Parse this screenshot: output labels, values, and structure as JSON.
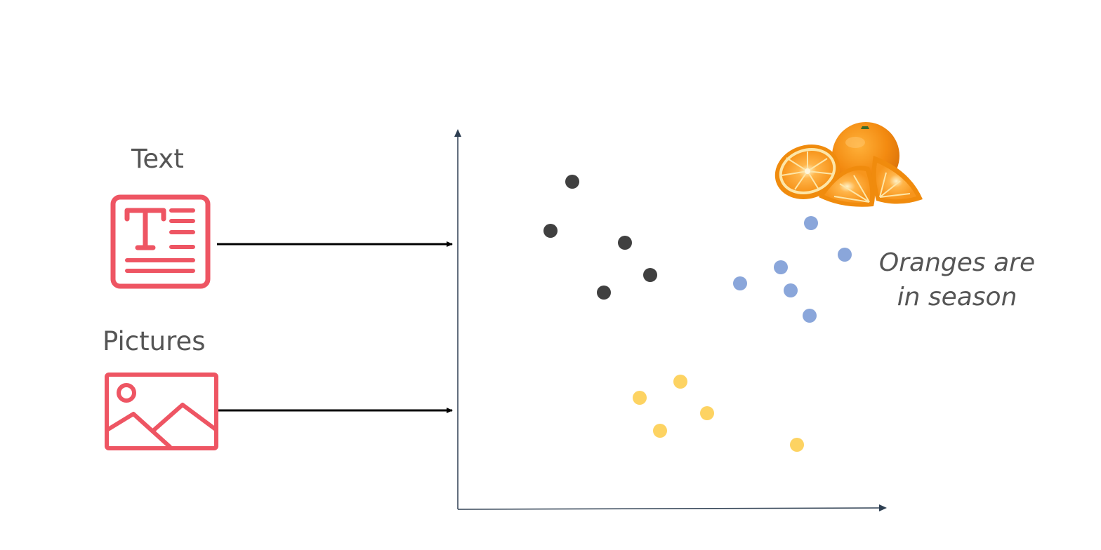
{
  "inputs": {
    "text_label": "Text",
    "pictures_label": "Pictures"
  },
  "caption": {
    "line1": "Oranges are",
    "line2": "in season"
  },
  "icons": {
    "text": "text-document-icon",
    "pictures": "image-landscape-icon",
    "oranges": "oranges-illustration"
  },
  "colors": {
    "icon": "#ee5563",
    "dark_cluster": "#404040",
    "blue_cluster": "#8aa6da",
    "yellow_cluster": "#fdd362",
    "axis": "#2e3f52",
    "arrow": "#000000",
    "text": "#555555"
  }
}
